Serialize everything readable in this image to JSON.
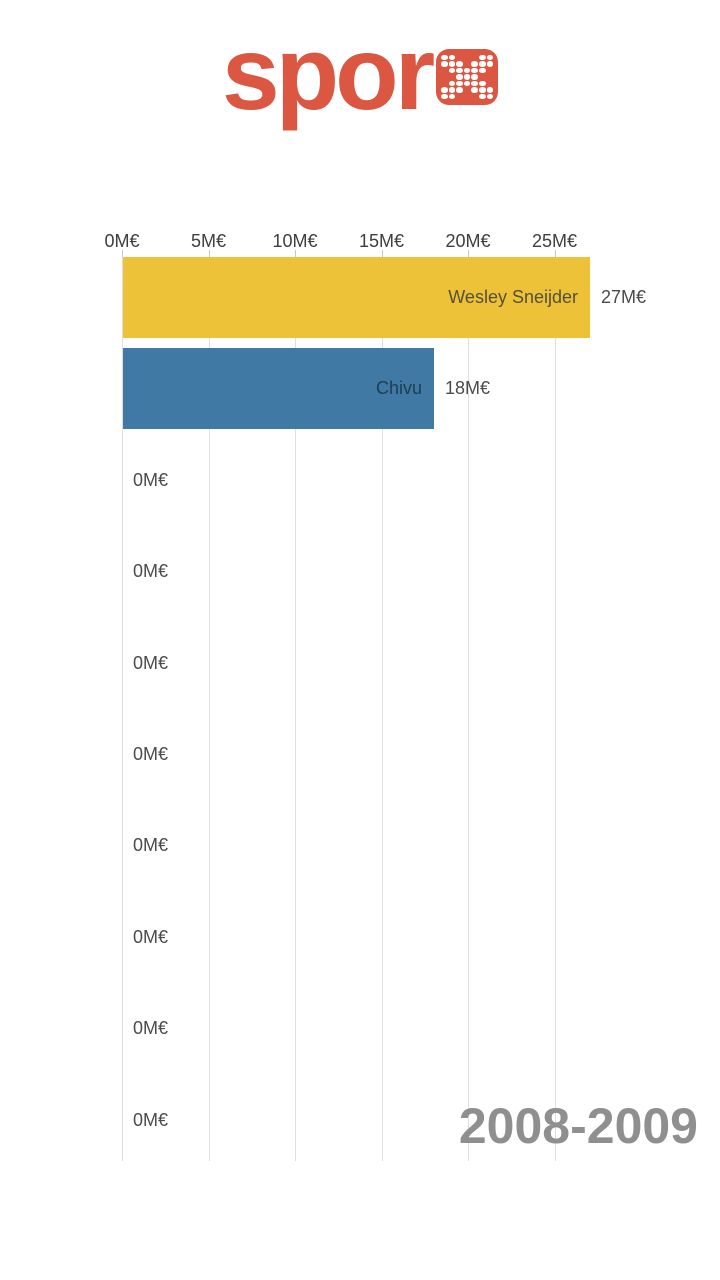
{
  "logo": {
    "text": "spor",
    "tile_icon": "dot-x-icon"
  },
  "colors": {
    "logo": "#dc5742",
    "grid": "#dedede",
    "tick_mark": "#c6c6c6",
    "axis_text": "#3e3e3e",
    "value_text": "#4b4b4b",
    "period_text": "#8f8f8f"
  },
  "chart_data": {
    "type": "bar",
    "orientation": "horizontal",
    "title": "",
    "period_label": "2008-2009",
    "value_unit": "M€",
    "x_axis": {
      "tick_labels": [
        "0M€",
        "5M€",
        "10M€",
        "15M€",
        "20M€",
        "25M€"
      ],
      "tick_values": [
        0,
        5,
        10,
        15,
        20,
        25
      ],
      "range": [
        0,
        25
      ],
      "gridlines": true
    },
    "legend": null,
    "bars": [
      {
        "name": "Wesley Sneijder",
        "value": 27,
        "value_label": "27M€",
        "color": "#edc138",
        "name_color": "#55503a"
      },
      {
        "name": "Chivu",
        "value": 18,
        "value_label": "18M€",
        "color": "#4079a3",
        "name_color": "#1e3d53"
      },
      {
        "name": "",
        "value": 0,
        "value_label": "0M€",
        "color": null,
        "name_color": null
      },
      {
        "name": "",
        "value": 0,
        "value_label": "0M€",
        "color": null,
        "name_color": null
      },
      {
        "name": "",
        "value": 0,
        "value_label": "0M€",
        "color": null,
        "name_color": null
      },
      {
        "name": "",
        "value": 0,
        "value_label": "0M€",
        "color": null,
        "name_color": null
      },
      {
        "name": "",
        "value": 0,
        "value_label": "0M€",
        "color": null,
        "name_color": null
      },
      {
        "name": "",
        "value": 0,
        "value_label": "0M€",
        "color": null,
        "name_color": null
      },
      {
        "name": "",
        "value": 0,
        "value_label": "0M€",
        "color": null,
        "name_color": null
      },
      {
        "name": "",
        "value": 0,
        "value_label": "0M€",
        "color": null,
        "name_color": null
      }
    ]
  }
}
